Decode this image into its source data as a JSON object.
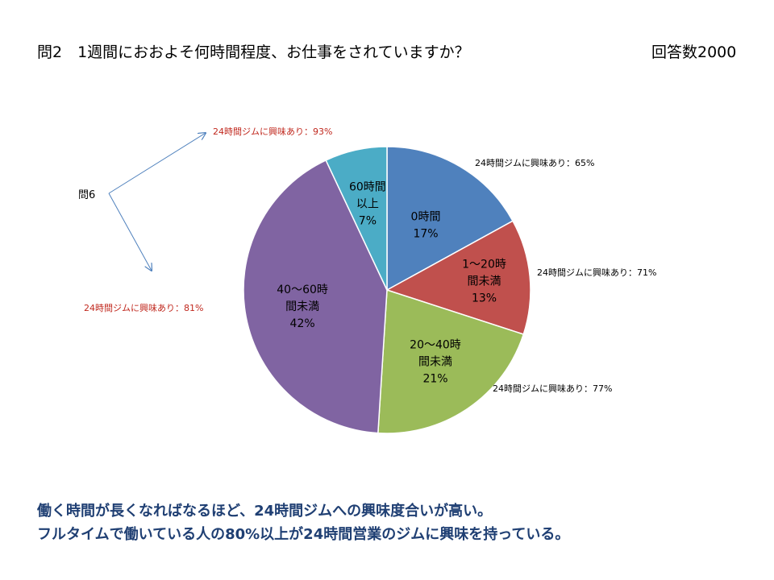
{
  "header": {
    "title": "問2　1週間におおよそ何時間程度、お仕事をされていますか？",
    "respondents": "回答数2000"
  },
  "chart_data": {
    "type": "pie",
    "slices": [
      {
        "label_lines": [
          "0時間"
        ],
        "value": 17,
        "pct_label": "17%",
        "color": "#4f81bd"
      },
      {
        "label_lines": [
          "1〜20時",
          "間未満"
        ],
        "value": 13,
        "pct_label": "13%",
        "color": "#c0504d"
      },
      {
        "label_lines": [
          "20〜40時",
          "間未満"
        ],
        "value": 21,
        "pct_label": "21%",
        "color": "#9bbb59"
      },
      {
        "label_lines": [
          "40〜60時",
          "間未満"
        ],
        "value": 42,
        "pct_label": "42%",
        "color": "#8064a2"
      },
      {
        "label_lines": [
          "60時間",
          "以上"
        ],
        "value": 7,
        "pct_label": "7%",
        "color": "#4bacc6"
      }
    ]
  },
  "annotations": {
    "slice_0": "24時間ジムに興味あり：65%",
    "slice_1": "24時間ジムに興味あり：71%",
    "slice_2": "24時間ジムに興味あり：77%",
    "slice_3": "24時間ジムに興味あり：81%",
    "slice_4": "24時間ジムに興味あり：93%",
    "question_ref": "問6"
  },
  "colors": {
    "annotation_red": "#c0281e",
    "arrow": "#4f81bd",
    "summary_text": "#1f3f73"
  },
  "summary": {
    "line1": "働く時間が長くなればなるほど、24時間ジムへの興味度合いが高い。",
    "line2": "フルタイムで働いている人の80%以上が24時間営業のジムに興味を持っている。"
  }
}
